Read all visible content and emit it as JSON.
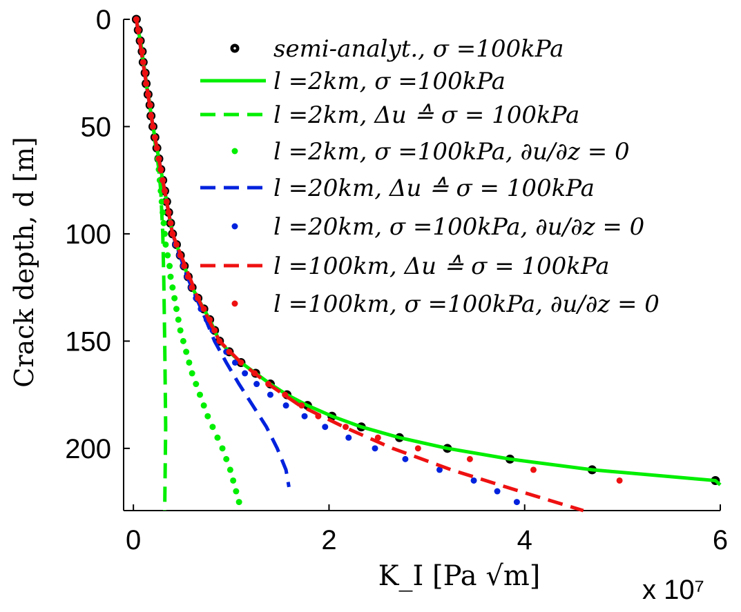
{
  "chart_data": {
    "type": "line",
    "x_label": "K_I [Pa √m]",
    "y_label": "Crack depth, d [m]",
    "x_multiplier": "x 10⁷",
    "xlim": [
      -0.1,
      6
    ],
    "xticks": [
      0,
      2,
      4,
      6
    ],
    "ylim": [
      0,
      229
    ],
    "yticks": [
      0,
      50,
      100,
      150,
      200
    ],
    "y_reversed": true,
    "legend": "upper right",
    "series": [
      {
        "name": "semi-analyt., σ =100kPa",
        "color": "#000000",
        "style": "marker",
        "y": [
          0,
          5,
          10,
          15,
          20,
          25,
          30,
          35,
          40,
          45,
          50,
          55,
          60,
          65,
          70,
          75,
          80,
          85,
          90,
          95,
          100,
          105,
          110,
          115,
          120,
          125,
          130,
          135,
          140,
          145,
          150,
          155,
          160,
          165,
          170,
          175,
          180,
          185,
          190,
          195,
          200,
          205,
          210,
          215
        ],
        "x": [
          0.03,
          0.05,
          0.07,
          0.09,
          0.1,
          0.12,
          0.13,
          0.15,
          0.17,
          0.18,
          0.2,
          0.22,
          0.24,
          0.26,
          0.28,
          0.3,
          0.32,
          0.34,
          0.36,
          0.38,
          0.4,
          0.44,
          0.48,
          0.52,
          0.56,
          0.6,
          0.66,
          0.72,
          0.78,
          0.83,
          0.88,
          0.98,
          1.1,
          1.25,
          1.4,
          1.57,
          1.78,
          2.03,
          2.33,
          2.72,
          3.21,
          3.85,
          4.69,
          5.95
        ]
      },
      {
        "name": "l =2km, σ =100kPa",
        "color": "#00ee00",
        "style": "solid",
        "y": [
          0,
          5,
          10,
          15,
          20,
          25,
          30,
          35,
          40,
          45,
          50,
          55,
          60,
          65,
          70,
          75,
          80,
          85,
          90,
          95,
          100,
          105,
          110,
          115,
          120,
          125,
          130,
          135,
          140,
          145,
          150,
          155,
          160,
          165,
          170,
          175,
          180,
          185,
          190,
          195,
          200,
          205,
          210,
          215,
          217
        ],
        "x": [
          0.03,
          0.05,
          0.07,
          0.09,
          0.1,
          0.12,
          0.13,
          0.15,
          0.17,
          0.18,
          0.2,
          0.22,
          0.24,
          0.26,
          0.28,
          0.3,
          0.32,
          0.34,
          0.36,
          0.38,
          0.4,
          0.44,
          0.48,
          0.52,
          0.56,
          0.6,
          0.66,
          0.72,
          0.78,
          0.83,
          0.88,
          0.98,
          1.1,
          1.25,
          1.4,
          1.57,
          1.78,
          2.03,
          2.33,
          2.72,
          3.21,
          3.85,
          4.69,
          5.95,
          6.0
        ]
      },
      {
        "name": "l =2km, Δu ≙ σ = 100kPa",
        "color": "#00ee00",
        "style": "dashed",
        "y": [
          0,
          20,
          40,
          60,
          70,
          80,
          90,
          100,
          120,
          150,
          190,
          229
        ],
        "x": [
          0.03,
          0.1,
          0.17,
          0.23,
          0.26,
          0.28,
          0.29,
          0.3,
          0.31,
          0.32,
          0.33,
          0.32
        ]
      },
      {
        "name": "l =2km, σ =100kPa, ∂u/∂z = 0",
        "color": "#00ee00",
        "style": "marker",
        "y": [
          0,
          5,
          10,
          15,
          20,
          25,
          30,
          35,
          40,
          45,
          50,
          55,
          60,
          65,
          70,
          75,
          80,
          85,
          90,
          95,
          100,
          105,
          110,
          115,
          120,
          125,
          130,
          135,
          140,
          145,
          150,
          155,
          160,
          165,
          170,
          175,
          180,
          185,
          190,
          195,
          200,
          205,
          210,
          215,
          220,
          225
        ],
        "x": [
          0.03,
          0.05,
          0.07,
          0.09,
          0.1,
          0.12,
          0.13,
          0.15,
          0.17,
          0.18,
          0.2,
          0.22,
          0.24,
          0.25,
          0.26,
          0.27,
          0.28,
          0.29,
          0.3,
          0.31,
          0.32,
          0.33,
          0.35,
          0.37,
          0.38,
          0.4,
          0.42,
          0.44,
          0.46,
          0.48,
          0.51,
          0.54,
          0.57,
          0.6,
          0.64,
          0.68,
          0.72,
          0.76,
          0.81,
          0.86,
          0.91,
          0.95,
          0.99,
          1.02,
          1.05,
          1.08
        ]
      },
      {
        "name": "l =20km, Δu ≙ σ = 100kPa",
        "color": "#0022dd",
        "style": "dashed",
        "y": [
          0,
          50,
          100,
          120,
          140,
          150,
          160,
          170,
          180,
          190,
          200,
          210,
          218
        ],
        "x": [
          0.03,
          0.2,
          0.4,
          0.55,
          0.74,
          0.83,
          0.95,
          1.08,
          1.22,
          1.36,
          1.47,
          1.56,
          1.59
        ]
      },
      {
        "name": "l =20km, σ =100kPa, ∂u/∂z = 0",
        "color": "#0022dd",
        "style": "marker",
        "y": [
          0,
          5,
          10,
          15,
          20,
          25,
          30,
          35,
          40,
          45,
          50,
          55,
          60,
          65,
          70,
          75,
          80,
          85,
          90,
          95,
          100,
          105,
          110,
          115,
          120,
          125,
          130,
          135,
          140,
          145,
          150,
          155,
          160,
          165,
          170,
          175,
          180,
          185,
          190,
          195,
          200,
          205,
          210,
          215,
          220,
          225
        ],
        "x": [
          0.03,
          0.05,
          0.07,
          0.09,
          0.1,
          0.12,
          0.13,
          0.15,
          0.17,
          0.18,
          0.2,
          0.22,
          0.24,
          0.26,
          0.28,
          0.3,
          0.32,
          0.34,
          0.36,
          0.38,
          0.4,
          0.43,
          0.47,
          0.51,
          0.55,
          0.59,
          0.64,
          0.69,
          0.75,
          0.81,
          0.88,
          0.95,
          1.04,
          1.14,
          1.26,
          1.4,
          1.56,
          1.75,
          1.96,
          2.2,
          2.47,
          2.78,
          3.13,
          3.48,
          3.72,
          3.92
        ]
      },
      {
        "name": "l =100km, Δu ≙ σ = 100kPa",
        "color": "#ee1111",
        "style": "dashed",
        "y": [
          0,
          50,
          100,
          130,
          150,
          160,
          170,
          180,
          190,
          200,
          210,
          220,
          229
        ],
        "x": [
          0.03,
          0.2,
          0.4,
          0.66,
          0.88,
          1.1,
          1.38,
          1.7,
          2.15,
          2.65,
          3.25,
          3.95,
          4.6
        ]
      },
      {
        "name": "l =100km, σ =100kPa, ∂u/∂z = 0",
        "color": "#ee1111",
        "style": "marker",
        "y": [
          0,
          5,
          10,
          15,
          20,
          25,
          30,
          35,
          40,
          45,
          50,
          55,
          60,
          65,
          70,
          75,
          80,
          85,
          90,
          95,
          100,
          105,
          110,
          115,
          120,
          125,
          130,
          135,
          140,
          145,
          150,
          155,
          160,
          165,
          170,
          175,
          180,
          185,
          190,
          195,
          200,
          205,
          210,
          215
        ],
        "x": [
          0.03,
          0.05,
          0.07,
          0.09,
          0.1,
          0.12,
          0.13,
          0.15,
          0.17,
          0.18,
          0.2,
          0.22,
          0.24,
          0.26,
          0.28,
          0.3,
          0.32,
          0.34,
          0.36,
          0.38,
          0.4,
          0.44,
          0.48,
          0.52,
          0.56,
          0.6,
          0.66,
          0.72,
          0.78,
          0.83,
          0.88,
          0.98,
          1.1,
          1.24,
          1.38,
          1.55,
          1.72,
          1.89,
          2.17,
          2.5,
          2.91,
          3.44,
          4.09,
          4.97
        ]
      }
    ]
  }
}
